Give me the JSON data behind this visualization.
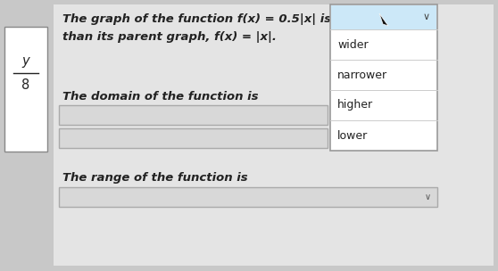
{
  "bg_color": "#c8c8c8",
  "panel_bg": "#e4e4e4",
  "left_box_bg": "#ffffff",
  "main_text_line1": "The graph of the function ƒ(χ) = 0.5|χ| is",
  "main_text_line2": "than its parent graph, ƒ(χ) = |χ|.",
  "domain_text": "The domain of the function is",
  "range_text": "The range of the function is",
  "dropdown_selected_bg": "#cce8f8",
  "dropdown_bg": "#ffffff",
  "dropdown_border": "#aaaaaa",
  "dropdown_items": [
    "wider",
    "narrower",
    "higher",
    "lower"
  ],
  "input_box_bg": "#d8d8d8",
  "input_box_border": "#aaaaaa",
  "fig_width": 5.58,
  "fig_height": 3.04,
  "dpi": 100,
  "text_color": "#222222",
  "label_font_size": 9.5,
  "small_font_size": 9.0
}
